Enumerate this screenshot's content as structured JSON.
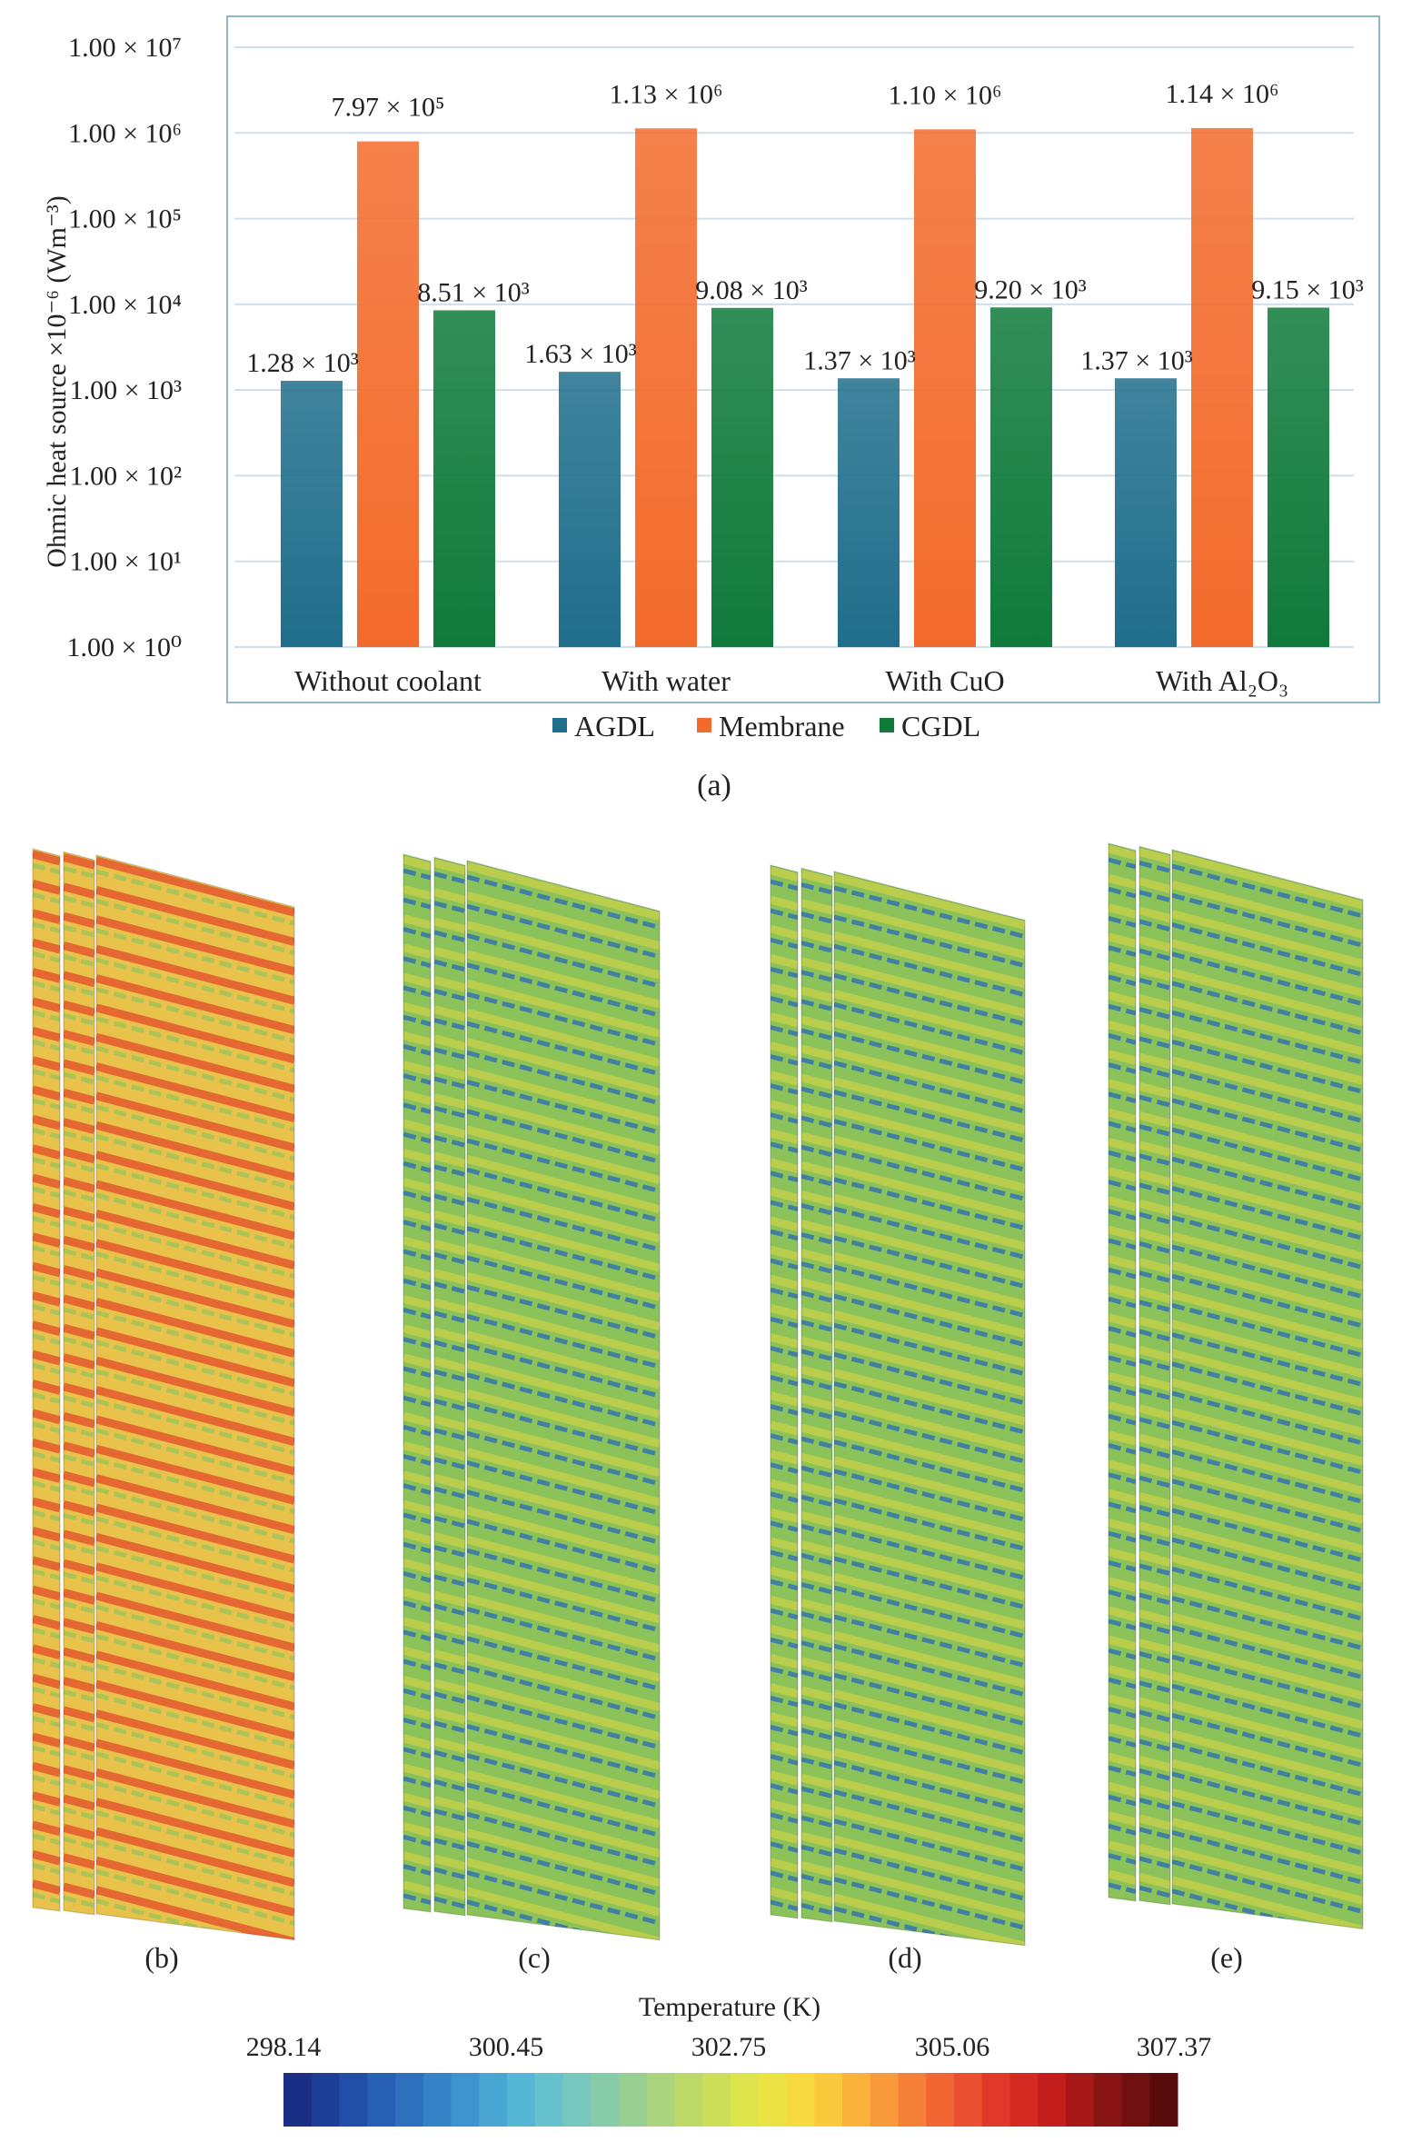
{
  "chart_data": {
    "type": "bar",
    "scale": "log",
    "ylabel": "Ohmic heat source ×10⁻⁶ (Wm⁻³)",
    "ylim": [
      1,
      10000000
    ],
    "y_ticks": [
      {
        "value": 1,
        "label": "1.00 × 10⁰"
      },
      {
        "value": 10,
        "label": "1.00 × 10¹"
      },
      {
        "value": 100,
        "label": "1.00 × 10²"
      },
      {
        "value": 1000,
        "label": "1.00 × 10³"
      },
      {
        "value": 10000,
        "label": "1.00 × 10⁴"
      },
      {
        "value": 100000,
        "label": "1.00 × 10⁵"
      },
      {
        "value": 1000000,
        "label": "1.00 × 10⁶"
      },
      {
        "value": 10000000,
        "label": "1.00 × 10⁷"
      }
    ],
    "categories": [
      "Without coolant",
      "With water",
      "With CuO",
      "With Al₂O₃"
    ],
    "series": [
      {
        "name": "AGDL",
        "color": "#1f6e8c",
        "values": [
          1280,
          1630,
          1370,
          1370
        ],
        "labels": [
          "1.28 × 10³",
          "1.63 × 10³",
          "1.37 × 10³",
          "1.37 × 10³"
        ]
      },
      {
        "name": "Membrane",
        "color": "#f36b2c",
        "values": [
          797000,
          1130000,
          1100000,
          1140000
        ],
        "labels": [
          "7.97 × 10⁵",
          "1.13 × 10⁶",
          "1.10 × 10⁶",
          "1.14 × 10⁶"
        ]
      },
      {
        "name": "CGDL",
        "color": "#0f7a3a",
        "values": [
          8510,
          9080,
          9200,
          9150
        ],
        "labels": [
          "8.51 × 10³",
          "9.08 × 10³",
          "9.20 × 10³",
          "9.15 × 10³"
        ]
      }
    ],
    "legend_position": "bottom",
    "grid": true
  },
  "panel_labels": {
    "a": "(a)",
    "b": "(b)",
    "c": "(c)",
    "d": "(d)",
    "e": "(e)"
  },
  "colorbar": {
    "title": "Temperature (K)",
    "min": 298.14,
    "max": 307.37,
    "tick_labels": [
      "298.14",
      "300.45",
      "302.75",
      "305.06",
      "307.37"
    ]
  },
  "heatmaps": [
    {
      "panel": "b",
      "condition": "Without coolant",
      "base_color": "#e8c24a",
      "band_color": "#e4572e",
      "stripe_color": "#9cc45a"
    },
    {
      "panel": "c",
      "condition": "With water",
      "base_color": "#8cc25a",
      "band_color": "#c3cf4a",
      "stripe_color": "#2f6fb4"
    },
    {
      "panel": "d",
      "condition": "With CuO",
      "base_color": "#8cc25a",
      "band_color": "#c3cf4a",
      "stripe_color": "#2f6fb4"
    },
    {
      "panel": "e",
      "condition": "With Al₂O₃",
      "base_color": "#8cc25a",
      "band_color": "#c3cf4a",
      "stripe_color": "#2f6fb4"
    }
  ]
}
